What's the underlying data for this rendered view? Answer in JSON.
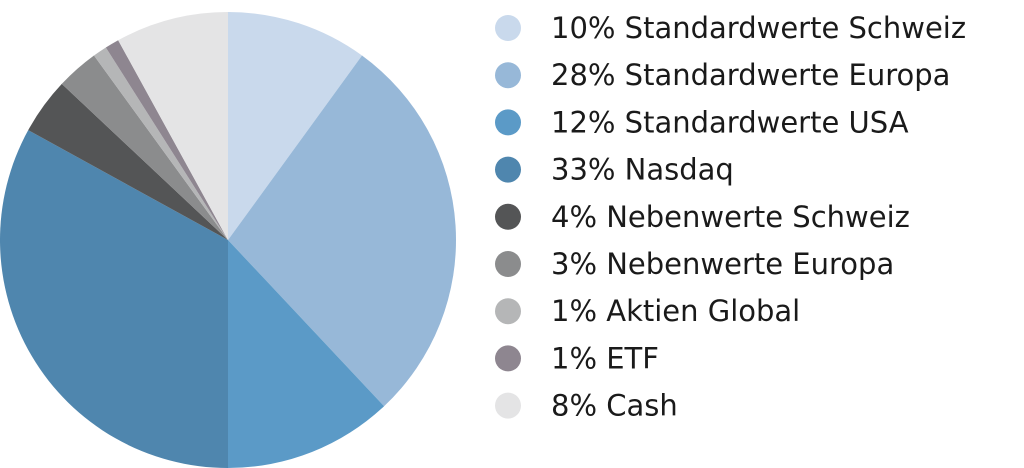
{
  "chart_data": {
    "type": "pie",
    "title": "",
    "start_angle_deg": 0,
    "direction": "clockwise",
    "legend_position": "right",
    "slices": [
      {
        "label": "10% Standardwerte Schweiz",
        "value": 10,
        "color": "#c9d9ec"
      },
      {
        "label": "28% Standardwerte  Europa",
        "value": 28,
        "color": "#97b8d8"
      },
      {
        "label": "12% Standardwerte  USA",
        "value": 12,
        "color": "#5b9ac7"
      },
      {
        "label": "33% Nasdaq",
        "value": 33,
        "color": "#4f86ae"
      },
      {
        "label": "4% Nebenwerte Schweiz",
        "value": 4,
        "color": "#545556"
      },
      {
        "label": "3% Nebenwerte Europa",
        "value": 3,
        "color": "#8b8c8d"
      },
      {
        "label": "1% Aktien Global",
        "value": 1,
        "color": "#b5b6b7"
      },
      {
        "label": "1% ETF",
        "value": 1,
        "color": "#8e8690"
      },
      {
        "label": "8% Cash",
        "value": 8,
        "color": "#e4e4e5"
      }
    ]
  }
}
